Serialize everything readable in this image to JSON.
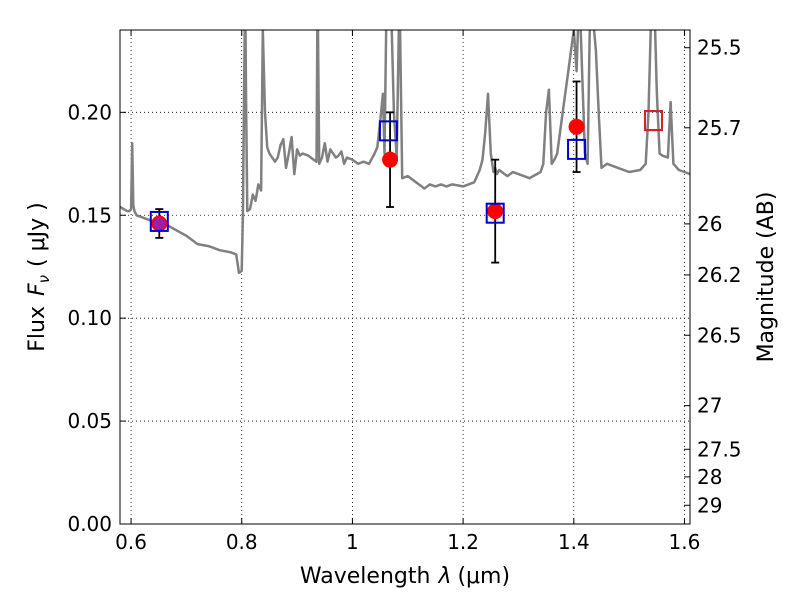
{
  "chart_data": {
    "type": "scatter",
    "xlabel_prefix": "Wavelength",
    "xlabel_symbol": "λ",
    "xlabel_unit": "(μm)",
    "ylabel_prefix": "Flux",
    "ylabel_symbol": "F",
    "ylabel_sub": "ν",
    "ylabel_unit": "( μJy )",
    "y2label": "Magnitude (AB)",
    "xlim": [
      0.58,
      1.61
    ],
    "ylim": [
      0.0,
      0.24
    ],
    "grid": true,
    "x_ticks": [
      0.6,
      0.8,
      1.0,
      1.2,
      1.4,
      1.6
    ],
    "x_tick_labels": [
      "0.6",
      "0.8",
      "1",
      "1.2",
      "1.4",
      "1.6"
    ],
    "y_ticks": [
      0.0,
      0.05,
      0.1,
      0.15,
      0.2
    ],
    "y_tick_labels": [
      "0.00",
      "0.05",
      "0.10",
      "0.15",
      "0.20"
    ],
    "y2_ticks": [
      {
        "flux": 0.2314,
        "label": "25.5"
      },
      {
        "flux": 0.1925,
        "label": "25.7"
      },
      {
        "flux": 0.1458,
        "label": "26"
      },
      {
        "flux": 0.121,
        "label": "26.2"
      },
      {
        "flux": 0.0917,
        "label": "26.5"
      },
      {
        "flux": 0.0575,
        "label": "27"
      },
      {
        "flux": 0.0363,
        "label": "27.5"
      },
      {
        "flux": 0.0229,
        "label": "28"
      },
      {
        "flux": 0.0091,
        "label": "29"
      }
    ],
    "series": [
      {
        "kind": "line",
        "color": "#808080",
        "x": [
          0.58,
          0.593,
          0.597,
          0.6,
          0.602,
          0.604,
          0.606,
          0.61,
          0.62,
          0.63,
          0.64,
          0.66,
          0.68,
          0.7,
          0.72,
          0.74,
          0.76,
          0.78,
          0.79,
          0.795,
          0.8,
          0.802,
          0.806,
          0.808,
          0.81,
          0.815,
          0.82,
          0.825,
          0.83,
          0.835,
          0.838,
          0.842,
          0.846,
          0.85,
          0.86,
          0.865,
          0.87,
          0.875,
          0.88,
          0.885,
          0.89,
          0.895,
          0.9,
          0.905,
          0.91,
          0.92,
          0.93,
          0.935,
          0.937,
          0.94,
          0.945,
          0.95,
          0.955,
          0.96,
          0.97,
          0.975,
          0.98,
          0.985,
          0.99,
          1.0,
          1.01,
          1.02,
          1.03,
          1.04,
          1.045,
          1.05,
          1.055,
          1.058,
          1.062,
          1.066,
          1.07,
          1.075,
          1.08,
          1.085,
          1.09,
          1.1,
          1.11,
          1.12,
          1.13,
          1.14,
          1.15,
          1.16,
          1.17,
          1.18,
          1.2,
          1.22,
          1.23,
          1.235,
          1.24,
          1.245,
          1.25,
          1.255,
          1.258,
          1.261,
          1.265,
          1.27,
          1.28,
          1.29,
          1.3,
          1.32,
          1.34,
          1.345,
          1.35,
          1.355,
          1.36,
          1.365,
          1.37,
          1.38,
          1.39,
          1.4,
          1.405,
          1.41,
          1.42,
          1.425,
          1.43,
          1.44,
          1.445,
          1.45,
          1.46,
          1.48,
          1.5,
          1.52,
          1.53,
          1.535,
          1.54,
          1.545,
          1.55,
          1.555,
          1.56,
          1.57,
          1.575,
          1.58,
          1.59,
          1.6,
          1.61
        ],
        "y": [
          0.154,
          0.152,
          0.152,
          0.153,
          0.185,
          0.155,
          0.152,
          0.15,
          0.149,
          0.148,
          0.147,
          0.146,
          0.143,
          0.14,
          0.136,
          0.135,
          0.133,
          0.132,
          0.131,
          0.122,
          0.123,
          0.15,
          0.26,
          0.2,
          0.152,
          0.153,
          0.16,
          0.157,
          0.165,
          0.162,
          0.24,
          0.2,
          0.183,
          0.18,
          0.176,
          0.178,
          0.184,
          0.187,
          0.173,
          0.18,
          0.188,
          0.17,
          0.182,
          0.179,
          0.18,
          0.179,
          0.177,
          0.176,
          0.26,
          0.175,
          0.178,
          0.185,
          0.176,
          0.182,
          0.178,
          0.179,
          0.181,
          0.175,
          0.178,
          0.177,
          0.175,
          0.176,
          0.175,
          0.18,
          0.183,
          0.195,
          0.209,
          0.18,
          0.26,
          0.26,
          0.25,
          0.2,
          0.178,
          0.26,
          0.168,
          0.169,
          0.167,
          0.165,
          0.163,
          0.165,
          0.164,
          0.165,
          0.164,
          0.165,
          0.164,
          0.166,
          0.172,
          0.177,
          0.19,
          0.209,
          0.18,
          0.171,
          0.173,
          0.17,
          0.172,
          0.171,
          0.169,
          0.171,
          0.17,
          0.168,
          0.171,
          0.175,
          0.2,
          0.211,
          0.175,
          0.177,
          0.18,
          0.2,
          0.22,
          0.24,
          0.22,
          0.26,
          0.18,
          0.175,
          0.26,
          0.23,
          0.2,
          0.173,
          0.175,
          0.173,
          0.171,
          0.172,
          0.175,
          0.2,
          0.25,
          0.26,
          0.21,
          0.18,
          0.179,
          0.178,
          0.205,
          0.175,
          0.172,
          0.171,
          0.17
        ]
      },
      {
        "kind": "points",
        "marker": "circle",
        "color": "#ff0000",
        "points": [
          {
            "x": 0.651,
            "y": 0.146,
            "yerr": 0.007
          },
          {
            "x": 1.068,
            "y": 0.177,
            "yerr": 0.023
          },
          {
            "x": 1.258,
            "y": 0.152,
            "yerr": 0.025
          },
          {
            "x": 1.405,
            "y": 0.193,
            "yerr": 0.022
          }
        ]
      },
      {
        "kind": "points",
        "marker": "square",
        "color": "#0000cc",
        "points": [
          {
            "x": 0.651,
            "y": 0.147
          },
          {
            "x": 1.065,
            "y": 0.191
          },
          {
            "x": 1.258,
            "y": 0.151
          },
          {
            "x": 1.405,
            "y": 0.182
          },
          {
            "x": 1.544,
            "y": 0.196
          }
        ]
      },
      {
        "kind": "points",
        "marker": "square",
        "color": "#dd2222",
        "points": [
          {
            "x": 1.544,
            "y": 0.196
          }
        ]
      },
      {
        "kind": "points",
        "marker": "dot",
        "color": "#9a1fb0",
        "points": [
          {
            "x": 0.651,
            "y": 0.146
          }
        ]
      }
    ]
  }
}
